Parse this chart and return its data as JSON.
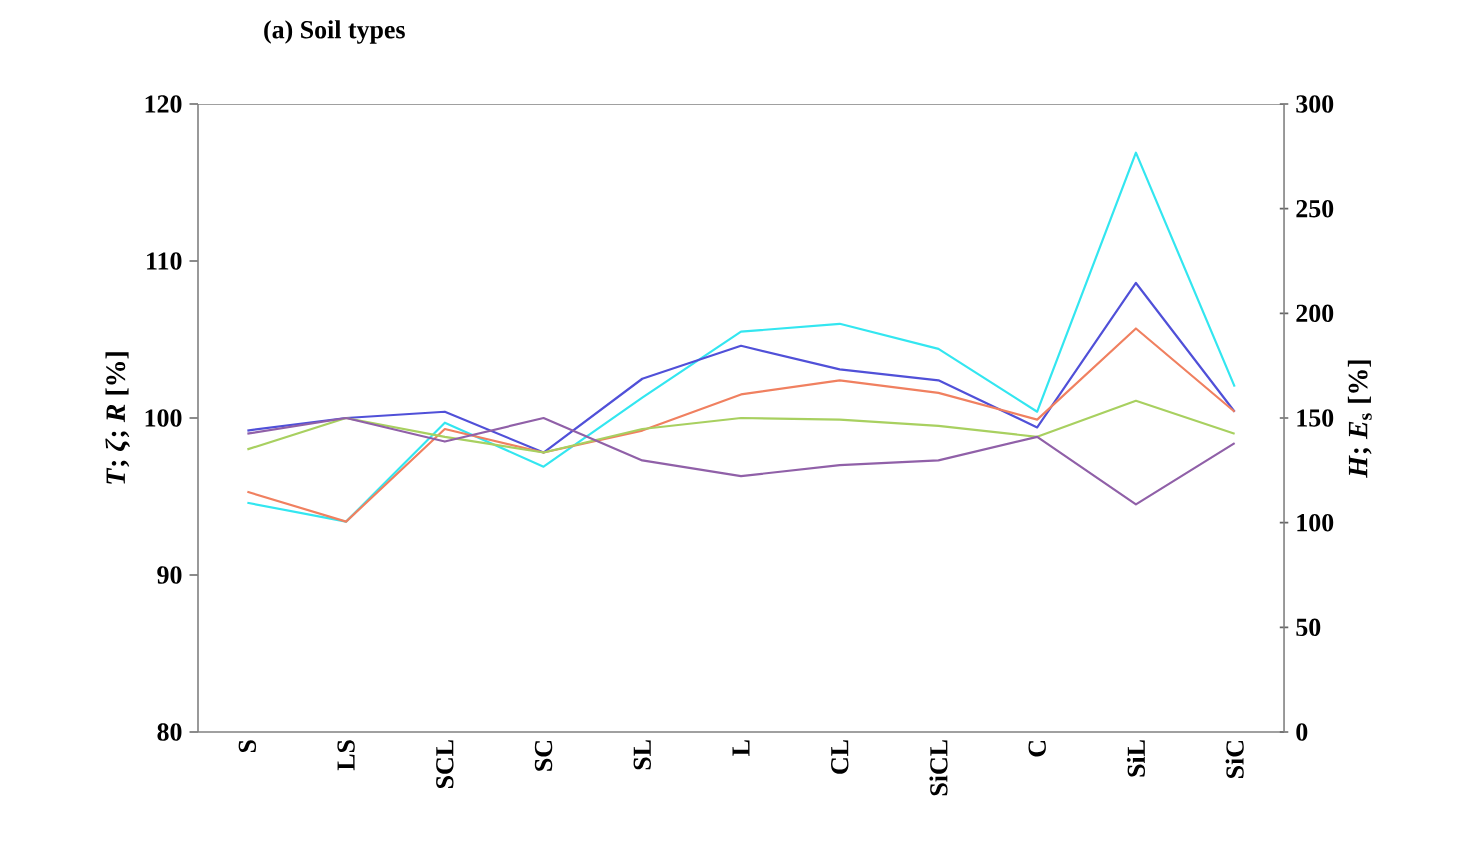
{
  "chart_data": {
    "type": "line",
    "title": "(a) Soil types",
    "ylabel": "*T*; *ζ*; *R*  [%]",
    "y2label": "*H*; *E*$_{s}$  [%]",
    "categories": [
      "S",
      "LS",
      "SCL",
      "SC",
      "SL",
      "L",
      "CL",
      "SiCL",
      "C",
      "SiL",
      "SiC"
    ],
    "ylim": [
      80,
      120
    ],
    "yticks": [
      80,
      90,
      100,
      110,
      120
    ],
    "y2lim": [
      0,
      300
    ],
    "y2ticks": [
      0,
      50,
      100,
      150,
      200,
      250,
      300
    ],
    "grid": false,
    "marker": "none",
    "line_style": "solid",
    "series": [
      {
        "color": "#33e6f0",
        "values": [
          94.6,
          93.4,
          99.7,
          96.9,
          101.3,
          105.5,
          106.0,
          104.4,
          100.4,
          116.9,
          102.0
        ]
      },
      {
        "color": "#5050d8",
        "values": [
          99.2,
          100.0,
          100.4,
          97.8,
          102.5,
          104.6,
          103.1,
          102.4,
          99.4,
          108.6,
          100.4
        ]
      },
      {
        "color": "#f08060",
        "values": [
          95.3,
          93.4,
          99.3,
          97.8,
          99.2,
          101.5,
          102.4,
          101.6,
          99.9,
          105.7,
          100.4
        ]
      },
      {
        "color": "#a8d060",
        "values": [
          98.0,
          100.0,
          98.8,
          97.8,
          99.3,
          100.0,
          99.9,
          99.5,
          98.8,
          101.1,
          99.0
        ]
      },
      {
        "color": "#9060a8",
        "values": [
          99.0,
          100.0,
          98.5,
          100.0,
          97.3,
          96.3,
          97.0,
          97.3,
          98.8,
          94.5,
          98.4
        ]
      }
    ]
  }
}
